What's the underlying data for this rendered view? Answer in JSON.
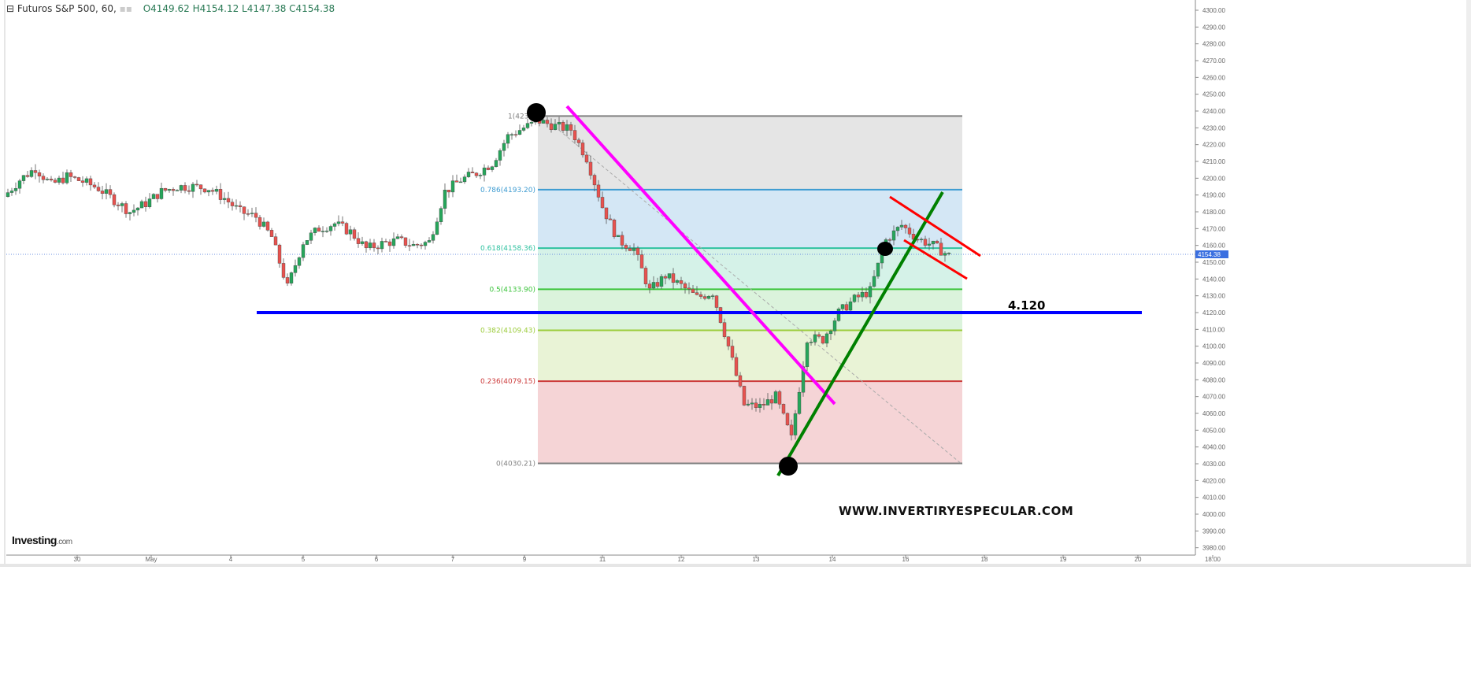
{
  "header": {
    "symbol": "Futuros S&P 500, 60,",
    "ohlc": "O4149.62  H4154.12  L4147.38  C4154.38"
  },
  "logo": {
    "name": "Investing",
    "suffix": ".com"
  },
  "watermark": "WWW.INVERTIRYESPECULAR.COM",
  "annotation_level_label": "4.120",
  "chart_data": {
    "type": "candlestick",
    "title": "",
    "ylim": [
      3980,
      4300
    ],
    "y_ticks": [
      "4300.00",
      "4290.00",
      "4280.00",
      "4270.00",
      "4260.00",
      "4250.00",
      "4240.00",
      "4230.00",
      "4220.00",
      "4210.00",
      "4200.00",
      "4190.00",
      "4180.00",
      "4170.00",
      "4160.00",
      "4150.00",
      "4140.00",
      "4130.00",
      "4120.00",
      "4110.00",
      "4100.00",
      "4090.00",
      "4080.00",
      "4070.00",
      "4060.00",
      "4050.00",
      "4040.00",
      "4030.00",
      "4020.00",
      "4010.00",
      "4000.00",
      "3990.00",
      "3980.00"
    ],
    "x_ticks": [
      "30",
      "May",
      "4",
      "5",
      "6",
      "7",
      "9",
      "11",
      "12",
      "13",
      "14",
      "16",
      "18",
      "19",
      "20",
      "18:00"
    ],
    "last_price": "4154.38",
    "approx_closes": [
      4189,
      4199,
      4206,
      4196,
      4201,
      4198,
      4194,
      4187,
      4180,
      4185,
      4192,
      4195,
      4195,
      4194,
      4188,
      4180,
      4177,
      4165,
      4135,
      4162,
      4170,
      4173,
      4168,
      4158,
      4161,
      4163,
      4160,
      4162,
      4192,
      4199,
      4203,
      4209,
      4225,
      4230,
      4234,
      4231,
      4229,
      4212,
      4183,
      4163,
      4158,
      4133,
      4142,
      4136,
      4129,
      4132,
      4100,
      4065,
      4064,
      4070,
      4045,
      4105,
      4104,
      4120,
      4128,
      4133,
      4163,
      4172,
      4164,
      4160,
      4154
    ],
    "up_color": "#26a65b",
    "down_color": "#e8524f",
    "fibonacci": [
      {
        "ratio": 1,
        "price": 4237,
        "label": "1(4237.",
        "color": "#808080",
        "fill": "#e5e5e5"
      },
      {
        "ratio": 0.786,
        "price": 4193.2,
        "label": "0.786(4193.20)",
        "color": "#3d9bd1",
        "fill": "#d4e7f5"
      },
      {
        "ratio": 0.618,
        "price": 4158.36,
        "label": "0.618(4158.36)",
        "color": "#2fc2a0",
        "fill": "#d5f2e8"
      },
      {
        "ratio": 0.5,
        "price": 4133.9,
        "label": "0.5(4133.90)",
        "color": "#3cc43c",
        "fill": "#dbf3dc"
      },
      {
        "ratio": 0.382,
        "price": 4109.43,
        "label": "0.382(4109.43)",
        "color": "#9ccc3c",
        "fill": "#e9f3d6"
      },
      {
        "ratio": 0.236,
        "price": 4079.15,
        "label": "0.236(4079.15)",
        "color": "#cc3a3a",
        "fill": "#f5d4d6"
      },
      {
        "ratio": 0,
        "price": 4030.21,
        "label": "0(4030.21)",
        "color": "#808080",
        "fill": null
      }
    ],
    "horizontal_line": {
      "price": 4120,
      "color": "#0000ff"
    },
    "trendline_colors": {
      "downtrend": "#ff00ff",
      "uptrend": "#008000",
      "channel": "#ff0000"
    }
  }
}
